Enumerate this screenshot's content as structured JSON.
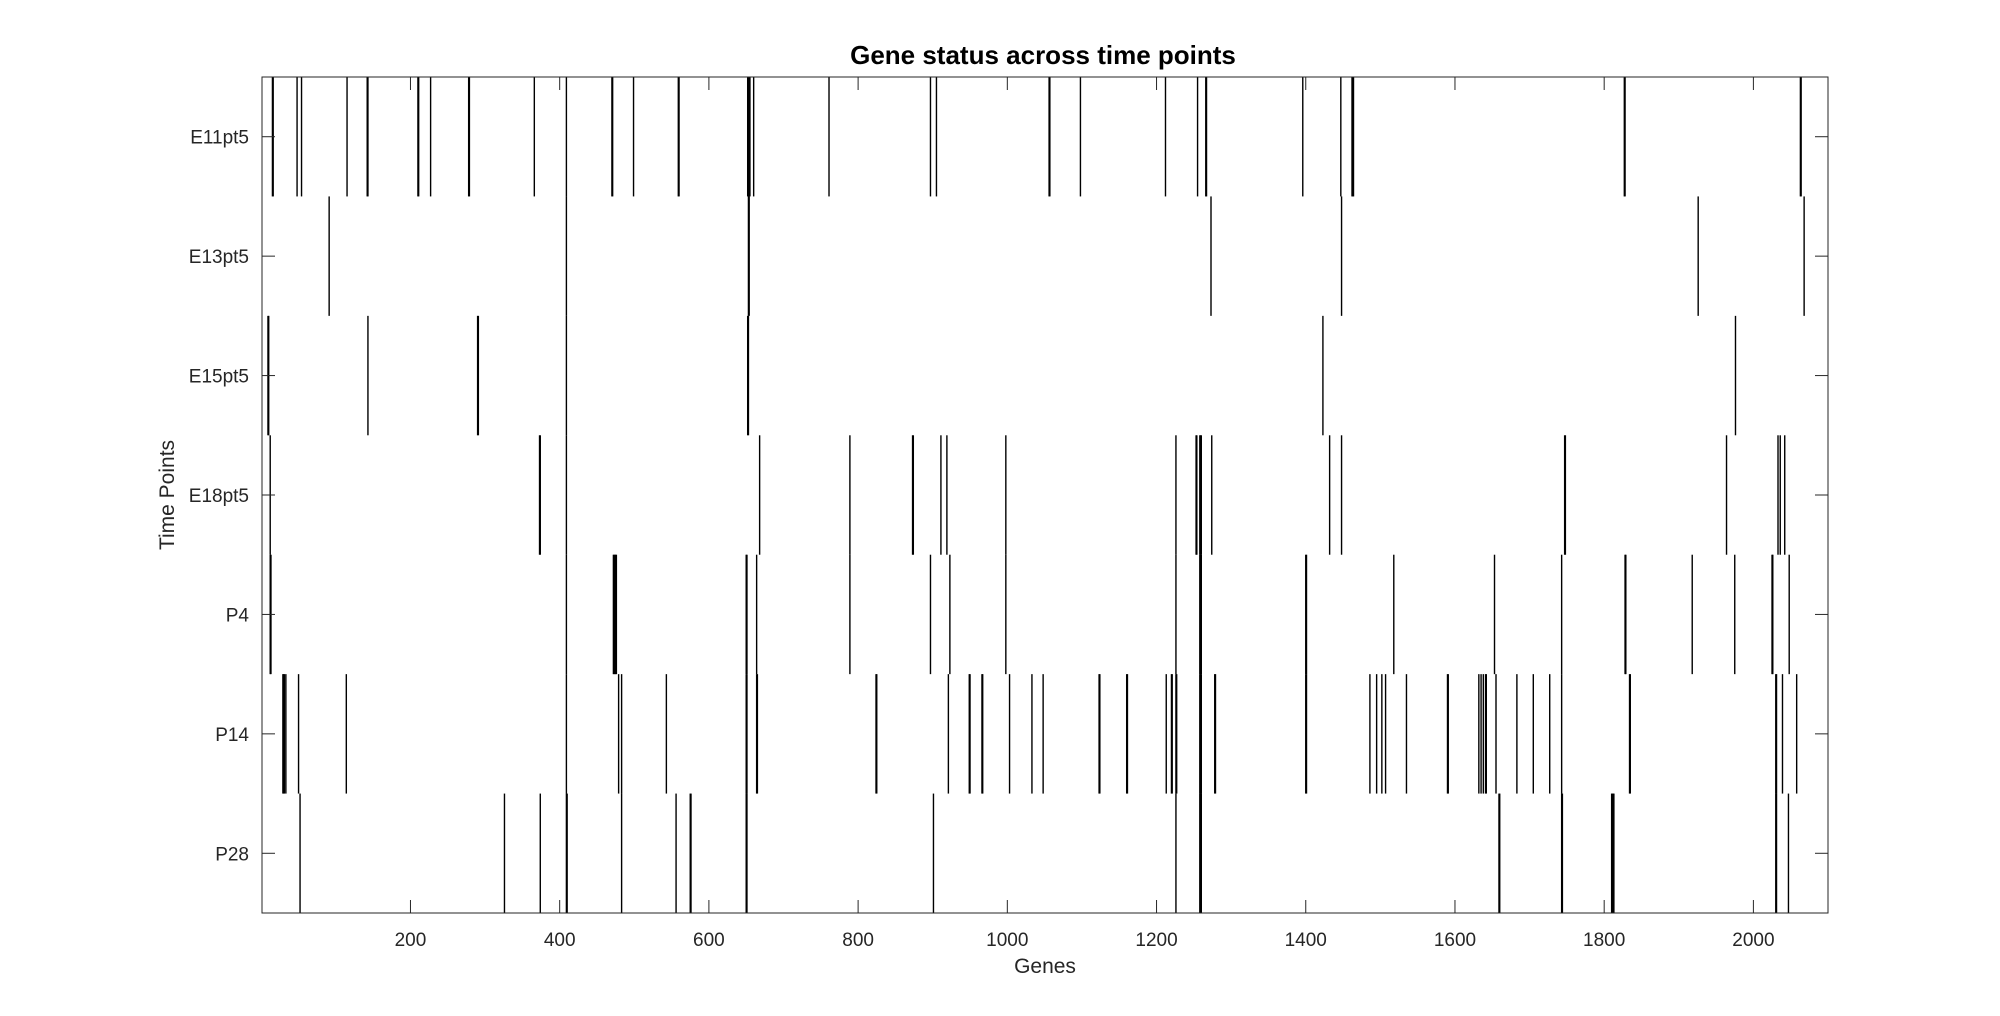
{
  "chart_data": {
    "type": "heatmap",
    "title": "Gene status across time points",
    "xlabel": "Genes",
    "ylabel": "Time Points",
    "xlim": [
      1,
      2100
    ],
    "x_ticks": [
      200,
      400,
      600,
      800,
      1000,
      1200,
      1400,
      1600,
      1800,
      2000
    ],
    "categories": [
      "E11pt5",
      "E13pt5",
      "E15pt5",
      "E18pt5",
      "P4",
      "P14",
      "P28"
    ],
    "grid": false,
    "colors": {
      "active": "#000000",
      "inactive": "#ffffff",
      "axis": "#262626"
    },
    "active_genes": [
      [
        15,
        16,
        48,
        54,
        115,
        142,
        143,
        210,
        211,
        227,
        278,
        279,
        366,
        409,
        470,
        471,
        499,
        559,
        560,
        652,
        653,
        654,
        655,
        660,
        761,
        897,
        905,
        1056,
        1057,
        1098,
        1212,
        1255,
        1266,
        1267,
        1396,
        1447,
        1462,
        1463,
        1464,
        1827,
        1828,
        2063,
        2064
      ],
      [
        91,
        409,
        653,
        654,
        1273,
        1448,
        1926,
        2068
      ],
      [
        9,
        10,
        143,
        290,
        291,
        409,
        652,
        653,
        1423,
        1976
      ],
      [
        12,
        373,
        374,
        409,
        668,
        789,
        873,
        874,
        911,
        919,
        998,
        1226,
        1253,
        1254,
        1258,
        1259,
        1260,
        1274,
        1432,
        1448,
        1747,
        1748,
        1964,
        2033,
        2036,
        2042
      ],
      [
        12,
        13,
        409,
        472,
        473,
        474,
        475,
        476,
        650,
        651,
        664,
        789,
        897,
        923,
        998,
        1226,
        1258,
        1259,
        1260,
        1400,
        1401,
        1518,
        1653,
        1743,
        1828,
        1829,
        1918,
        1975,
        2025,
        2026,
        2048
      ],
      [
        29,
        30,
        31,
        33,
        50,
        114,
        409,
        479,
        483,
        543,
        650,
        651,
        664,
        665,
        824,
        825,
        921,
        949,
        950,
        966,
        967,
        1003,
        1033,
        1048,
        1123,
        1124,
        1160,
        1161,
        1213,
        1220,
        1221,
        1226,
        1227,
        1258,
        1259,
        1260,
        1278,
        1279,
        1400,
        1401,
        1486,
        1495,
        1502,
        1507,
        1535,
        1590,
        1591,
        1632,
        1635,
        1638,
        1641,
        1642,
        1655,
        1683,
        1705,
        1727,
        1743,
        1834,
        1835,
        2030,
        2031,
        2039,
        2058
      ],
      [
        52,
        326,
        374,
        409,
        410,
        483,
        556,
        575,
        576,
        650,
        651,
        901,
        1226,
        1258,
        1259,
        1260,
        1659,
        1660,
        1743,
        1744,
        1810,
        1811,
        1812,
        1813,
        2030,
        2031,
        2047
      ]
    ]
  }
}
